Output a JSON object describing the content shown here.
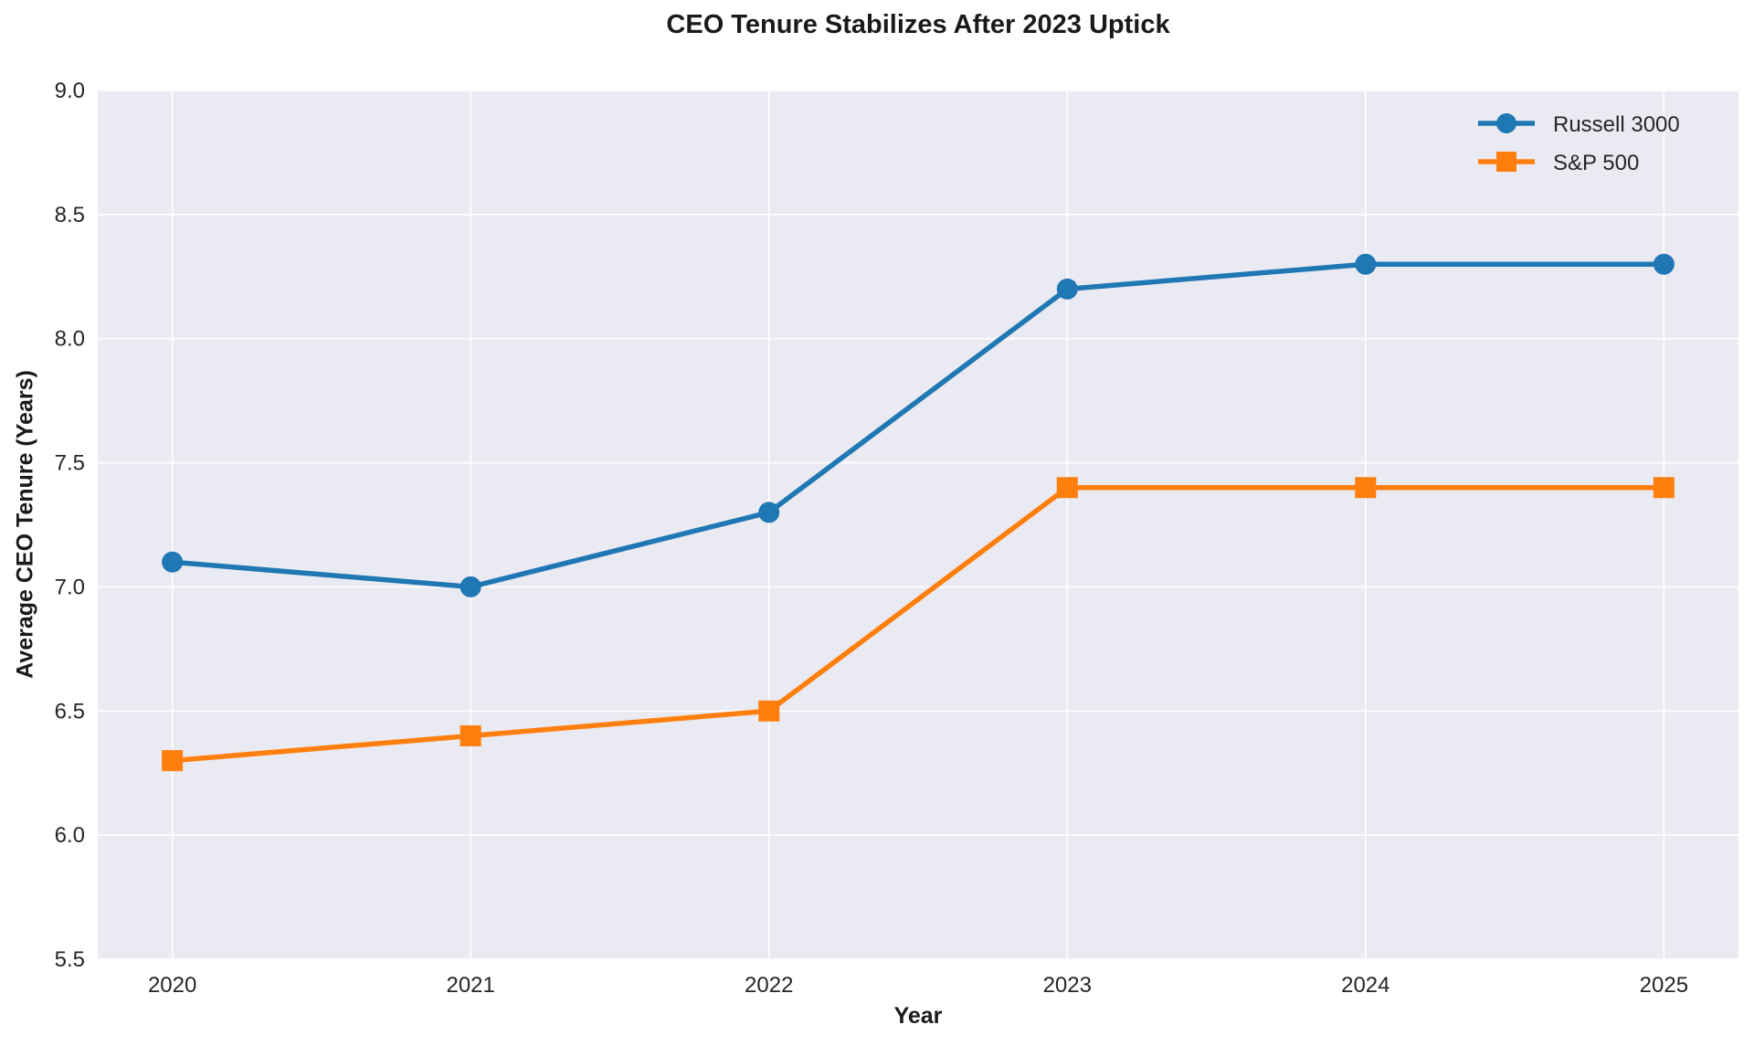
{
  "chart_data": {
    "type": "line",
    "title": "CEO Tenure Stabilizes After 2023 Uptick",
    "xlabel": "Year",
    "ylabel": "Average CEO Tenure (Years)",
    "x": [
      2020,
      2021,
      2022,
      2023,
      2024,
      2025
    ],
    "series": [
      {
        "name": "Russell 3000",
        "marker": "circle",
        "color": "#1f77b4",
        "values": [
          7.1,
          7.0,
          7.3,
          8.2,
          8.3,
          8.3
        ]
      },
      {
        "name": "S&P 500",
        "marker": "square",
        "color": "#ff7f0e",
        "values": [
          6.3,
          6.4,
          6.5,
          7.4,
          7.4,
          7.4
        ]
      }
    ],
    "ylim": [
      5.5,
      9.0
    ],
    "ytick_step": 0.5,
    "grid": true,
    "legend_position": "upper right",
    "plot_background": "#eaeaf2",
    "grid_color": "#ffffff",
    "tick_color": "#262626",
    "figure_background": "#ffffff"
  }
}
